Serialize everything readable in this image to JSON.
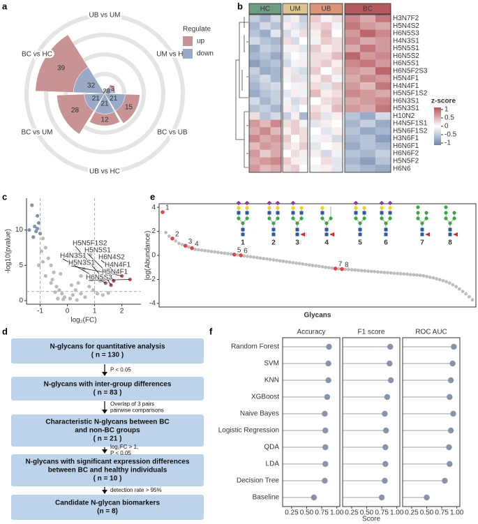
{
  "panel_labels": [
    "a",
    "b",
    "c",
    "d",
    "e",
    "f"
  ],
  "chart_data": [
    {
      "type": "polar_bar",
      "categories": [
        "BC vs HC",
        "UB vs UM",
        "UM vs HC",
        "BC vs UB",
        "UB vs HC",
        "BC vs UM"
      ],
      "legend_title": "Regulate",
      "series": [
        {
          "name": "up",
          "color": "#c79394",
          "values": [
            39,
            2,
            3,
            15,
            12,
            28
          ]
        },
        {
          "name": "down",
          "color": "#9aa9c6",
          "values": [
            32,
            1,
            8,
            21,
            21,
            21
          ]
        }
      ],
      "rlim": [
        0,
        80
      ],
      "rticks": [
        20,
        40,
        60,
        80
      ]
    },
    {
      "type": "heatmap",
      "groups": [
        "HC",
        "UM",
        "UB",
        "BC"
      ],
      "group_colors": [
        "#6f9c84",
        "#dcc592",
        "#dc9479",
        "#b65a5f"
      ],
      "rows": [
        "H3N7F2",
        "H5N4S2",
        "H6N5S3",
        "H4N3S1",
        "H5N5S1",
        "H6N5S2",
        "H6N5S1",
        "H6N5F2S3",
        "H5N4F1",
        "H4N4F1",
        "H5N5F1S2",
        "H6N3S1",
        "H5N3S1",
        "H10N2",
        "H4N5F1S1",
        "H5N6F1S2",
        "H3N6F1",
        "H6N6F1",
        "H6N6F2",
        "H5N5F2",
        "H6N6"
      ],
      "values": [
        [
          -0.4,
          -0.6,
          -0.3,
          -0.2,
          0.1,
          -0.4,
          0.3,
          -0.1,
          0.2,
          0.7,
          0.5,
          0.8
        ],
        [
          -0.6,
          -0.3,
          -0.5,
          0.1,
          -0.2,
          -0.3,
          0.2,
          0.3,
          -0.1,
          0.8,
          0.6,
          0.5
        ],
        [
          -0.5,
          -0.7,
          -0.2,
          -0.3,
          -0.1,
          0.2,
          0.1,
          0.4,
          0.0,
          0.6,
          0.9,
          0.7
        ],
        [
          -0.3,
          -0.5,
          -0.6,
          0.2,
          -0.3,
          0.0,
          -0.1,
          0.3,
          0.2,
          0.7,
          0.5,
          0.6
        ],
        [
          -0.7,
          -0.4,
          -0.5,
          -0.1,
          0.1,
          -0.2,
          0.3,
          0.1,
          0.2,
          0.5,
          0.8,
          0.6
        ],
        [
          -0.6,
          -0.5,
          -0.7,
          -0.2,
          0.0,
          -0.1,
          0.2,
          0.2,
          0.4,
          0.9,
          0.6,
          0.7
        ],
        [
          -0.8,
          -0.6,
          -0.5,
          -0.3,
          -0.1,
          0.1,
          0.2,
          0.3,
          0.1,
          0.7,
          0.8,
          0.6
        ],
        [
          -0.4,
          -0.7,
          -0.6,
          0.1,
          -0.2,
          -0.3,
          0.3,
          0.0,
          0.2,
          0.6,
          0.5,
          0.9
        ],
        [
          -0.5,
          -0.3,
          -0.6,
          -0.1,
          0.2,
          -0.2,
          0.1,
          0.3,
          -0.1,
          0.5,
          0.7,
          0.6
        ],
        [
          -0.6,
          -0.4,
          -0.3,
          0.0,
          -0.1,
          0.1,
          0.2,
          -0.2,
          0.3,
          0.6,
          0.4,
          0.8
        ],
        [
          -0.7,
          -0.5,
          -0.4,
          -0.2,
          0.1,
          -0.1,
          0.4,
          0.1,
          0.2,
          0.7,
          0.6,
          0.5
        ],
        [
          -0.3,
          -0.6,
          -0.4,
          -0.1,
          -0.3,
          0.2,
          0.0,
          0.2,
          0.3,
          0.5,
          0.6,
          0.7
        ],
        [
          -0.5,
          -0.4,
          -0.6,
          0.1,
          -0.2,
          0.0,
          0.2,
          0.1,
          0.4,
          0.6,
          0.5,
          0.8
        ],
        [
          0.2,
          -0.5,
          -0.3,
          -0.4,
          0.1,
          -0.6,
          0.3,
          -0.2,
          0.1,
          -0.5,
          -0.7,
          -0.3
        ],
        [
          0.6,
          0.4,
          0.7,
          0.2,
          0.3,
          -0.1,
          -0.2,
          0.1,
          0.0,
          -0.6,
          -0.4,
          -0.7
        ],
        [
          0.5,
          0.7,
          0.4,
          0.1,
          0.3,
          0.2,
          0.0,
          -0.2,
          0.1,
          -0.5,
          -0.7,
          -0.6
        ],
        [
          0.7,
          0.5,
          0.6,
          0.3,
          0.0,
          0.2,
          -0.1,
          0.1,
          -0.3,
          -0.6,
          -0.5,
          -0.8
        ],
        [
          0.4,
          0.6,
          0.5,
          0.2,
          0.1,
          0.3,
          -0.2,
          0.0,
          0.1,
          -0.7,
          -0.5,
          -0.6
        ],
        [
          0.6,
          0.3,
          0.5,
          0.0,
          0.2,
          0.1,
          0.1,
          -0.3,
          -0.1,
          -0.5,
          -0.6,
          -0.4
        ],
        [
          0.5,
          0.6,
          0.7,
          0.3,
          0.1,
          -0.1,
          0.0,
          0.2,
          -0.2,
          -0.6,
          -0.8,
          -0.5
        ],
        [
          0.6,
          0.4,
          0.5,
          0.2,
          0.3,
          0.0,
          -0.1,
          0.1,
          -0.2,
          -0.5,
          -0.6,
          -0.7
        ]
      ],
      "colorbar_title": "z-score",
      "zlim": [
        -1,
        1
      ],
      "zticks": [
        1,
        0.5,
        0,
        -0.5,
        -1
      ],
      "colors": [
        "#6f87ad",
        "#ffffff",
        "#b4565b"
      ]
    },
    {
      "type": "volcano",
      "xlabel": "log₂(FC)",
      "ylabel": "-log10(pvalue)",
      "xlim": [
        -1.5,
        2.7
      ],
      "xticks": [
        -1,
        0,
        1,
        2
      ],
      "ylim": [
        -0.5,
        14.5
      ],
      "yticks": [
        0,
        5,
        10
      ],
      "vlines": [
        -1,
        1
      ],
      "hline": 1.3,
      "series": [
        {
          "color": "#7f93b5",
          "x": [
            -1.3,
            -1.1,
            -1.05,
            -1.2,
            -1.4,
            -1.15,
            -1.0,
            -1.25,
            -1.1
          ],
          "y": [
            13.5,
            12,
            11,
            10.5,
            10,
            9.8,
            9.5,
            9,
            10.2
          ]
        },
        {
          "color": "#bbbbbb",
          "x": [
            -0.9,
            -0.8,
            -0.7,
            -0.6,
            -0.5,
            -0.9,
            -0.55,
            -0.4,
            -0.3,
            -0.2,
            -0.1,
            -0.8,
            -0.6,
            -0.45,
            -0.35,
            -0.15,
            0.1,
            0.2,
            0.3,
            0.4,
            0.5,
            0.6,
            0.7,
            0.9,
            0.8,
            0.5,
            0.65,
            0.95,
            -1.05,
            -0.95,
            1.1,
            1.3,
            1.5,
            1.2,
            0.85,
            0.35,
            -0.25,
            0.15
          ],
          "y": [
            8.8,
            7.5,
            6,
            5,
            4,
            5.5,
            3,
            2,
            1.5,
            1,
            0.5,
            3.5,
            2.5,
            1.2,
            0.3,
            0.2,
            0.3,
            0.8,
            1.5,
            2.5,
            3.5,
            4.5,
            5.5,
            3,
            2,
            1,
            0.5,
            1.5,
            5,
            7,
            1.0,
            0.8,
            1.1,
            2.8,
            6.5,
            0.1,
            3.8,
            2.2
          ]
        },
        {
          "color": "#b5585a",
          "x": [
            1.3,
            1.5,
            1.4,
            1.8,
            2.0,
            1.7,
            1.6,
            2.3
          ],
          "y": [
            3.2,
            3.8,
            2.5,
            4.0,
            3.5,
            2.8,
            2.2,
            3.0
          ],
          "point_labels": [
            "H5N5F1S2",
            "H5N5S1",
            "H4N3S1",
            "H6N4S2",
            "H5N3S1",
            "H4N4F1",
            "H5N4F1",
            "H6N5S3"
          ]
        }
      ]
    },
    {
      "type": "ranked_scatter",
      "ylabel": "log(Abundance)",
      "xlabel": "Glycans",
      "ylim": [
        -4.3,
        4.3
      ],
      "yticks": [
        -4,
        -2,
        0,
        2,
        4
      ],
      "color": "#bdbdbd",
      "highlight_color": "#d8474a",
      "values": [
        3.6,
        1.9,
        1.6,
        1.4,
        1.2,
        1.0,
        0.9,
        0.8,
        0.7,
        0.6,
        0.5,
        0.46,
        0.43,
        0.39,
        0.36,
        0.32,
        0.29,
        0.25,
        0.21,
        0.18,
        0.14,
        0.11,
        0.07,
        0.04,
        0.0,
        -0.04,
        -0.08,
        -0.11,
        -0.15,
        -0.19,
        -0.23,
        -0.27,
        -0.3,
        -0.34,
        -0.38,
        -0.42,
        -0.46,
        -0.49,
        -0.53,
        -0.57,
        -0.61,
        -0.65,
        -0.68,
        -0.72,
        -0.76,
        -0.8,
        -0.84,
        -0.87,
        -0.91,
        -0.95,
        -0.99,
        -1.03,
        -1.06,
        -1.1,
        -1.12,
        -1.14,
        -1.16,
        -1.18,
        -1.2,
        -1.22,
        -1.24,
        -1.27,
        -1.29,
        -1.31,
        -1.33,
        -1.35,
        -1.38,
        -1.4,
        -1.42,
        -1.44,
        -1.46,
        -1.49,
        -1.51,
        -1.53,
        -1.55,
        -1.57,
        -1.6,
        -1.62,
        -1.64,
        -1.66,
        -1.7,
        -1.76,
        -1.82,
        -1.88,
        -1.95,
        -2.02,
        -2.1,
        -2.2,
        -2.3,
        -2.45,
        -2.6,
        -2.8,
        -3.0,
        -3.2,
        -3.45,
        -3.7
      ],
      "highlights": [
        {
          "index": 0,
          "label": "1"
        },
        {
          "index": 3,
          "label": "2"
        },
        {
          "index": 7,
          "label": "3"
        },
        {
          "index": 9,
          "label": "4"
        },
        {
          "index": 22,
          "label": "5"
        },
        {
          "index": 24,
          "label": "6"
        },
        {
          "index": 53,
          "label": "7"
        },
        {
          "index": 55,
          "label": "8"
        }
      ]
    },
    {
      "type": "lollipop",
      "categories": [
        "Random Forest",
        "SVM",
        "KNN",
        "XGBoost",
        "Naive Bayes",
        "Logistic Regression",
        "QDA",
        "LDA",
        "Decision Tree",
        "Baseline"
      ],
      "facets": [
        {
          "title": "Accuracy",
          "values": [
            0.87,
            0.86,
            0.86,
            0.84,
            0.8,
            0.81,
            0.81,
            0.81,
            0.8,
            0.62
          ]
        },
        {
          "title": "F1 score",
          "values": [
            0.89,
            0.88,
            0.9,
            0.84,
            0.8,
            0.82,
            0.81,
            0.81,
            0.8,
            0.75
          ]
        },
        {
          "title": "ROC AUC",
          "values": [
            0.95,
            0.93,
            0.9,
            0.88,
            0.94,
            0.9,
            0.87,
            0.88,
            0.8,
            0.5
          ]
        }
      ],
      "xlim": [
        0.1,
        1.05
      ],
      "xticks": [
        0.25,
        {
          "value": 0.5,
          "label": "0.50"
        },
        0.75,
        {
          "value": 1,
          "label": "1.00"
        }
      ],
      "xlabel": "Score",
      "color": "#8a94a8"
    }
  ],
  "flowchart": {
    "steps": [
      {
        "lines": [
          "N-glycans for quantitative analysis",
          "( n = 130 )"
        ]
      },
      {
        "lines": [
          "N-glycans with inter-group differences",
          "( n = 83 )"
        ]
      },
      {
        "lines": [
          "Characteristic N-glycans between BC",
          "and non-BC groups",
          "( n = 21 )"
        ]
      },
      {
        "lines": [
          "N-glycans with significant expression differences",
          "between BC and healthy individuals",
          "( n = 10 )"
        ]
      },
      {
        "lines": [
          "Candidate N-glycan biomarkers",
          "(n = 8)"
        ]
      }
    ],
    "arrows": [
      {
        "lines": [
          "P < 0.05"
        ]
      },
      {
        "lines": [
          "Overlap of 3 pairs",
          "pairwise comparisons"
        ]
      },
      {
        "lines": [
          "log₂FC > 1,",
          "P < 0.05"
        ]
      },
      {
        "lines": [
          "detection rate > 95%"
        ]
      }
    ]
  }
}
